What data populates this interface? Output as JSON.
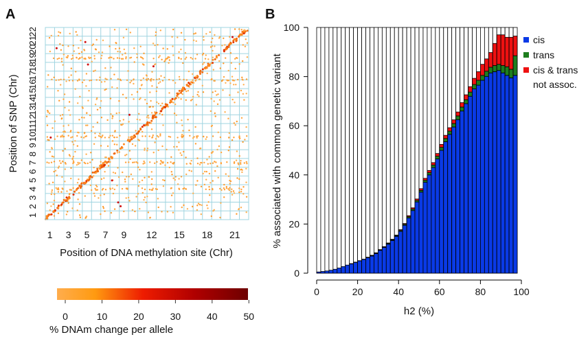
{
  "panels": {
    "a": {
      "letter": "A",
      "xlabel": "Position of DNA methylation site (Chr)",
      "ylabel": "Position of SNP (Chr)",
      "x_ticks": [
        "1",
        "3",
        "5",
        "7",
        "9",
        "12",
        "15",
        "18",
        "21"
      ],
      "y_ticks": [
        "1",
        "2",
        "3",
        "4",
        "5",
        "6",
        "7",
        "8",
        "9",
        "10",
        "11",
        "12",
        "13",
        "14",
        "15",
        "16",
        "17",
        "18",
        "19",
        "20",
        "21",
        "22"
      ],
      "grid_color": "#9fd4e0",
      "colorbar": {
        "label": "% DNAm change per allele",
        "ticks": [
          "0",
          "10",
          "20",
          "30",
          "40",
          "50"
        ],
        "range": [
          0,
          52
        ],
        "colors": [
          "#ffad4d",
          "#ff9a10",
          "#ee1c00",
          "#b00000",
          "#6e0000"
        ]
      }
    },
    "b": {
      "letter": "B",
      "xlabel": "h2 (%)",
      "ylabel": "% associated with common genetic variant",
      "x_ticks": [
        "0",
        "20",
        "40",
        "60",
        "80",
        "100"
      ],
      "y_ticks": [
        "0",
        "20",
        "40",
        "60",
        "80",
        "100"
      ],
      "legend": [
        {
          "label": "cis",
          "color": "#0a3ae6"
        },
        {
          "label": "trans",
          "color": "#1e7e1e"
        },
        {
          "label": "cis & trans",
          "color": "#ee1111"
        },
        {
          "label": "not assoc.",
          "color": "#ffffff"
        }
      ]
    }
  },
  "chart_data": [
    {
      "type": "scatter",
      "title": "A",
      "xlabel": "Position of DNA methylation site (Chr)",
      "ylabel": "Position of SNP (Chr)",
      "x_tick_labels": [
        "1",
        "3",
        "5",
        "7",
        "9",
        "12",
        "15",
        "18",
        "21"
      ],
      "y_tick_labels": [
        "1",
        "2",
        "3",
        "4",
        "5",
        "6",
        "7",
        "8",
        "9",
        "10",
        "11",
        "12",
        "13",
        "14",
        "15",
        "16",
        "17",
        "18",
        "19",
        "20",
        "21",
        "22"
      ],
      "xlim": [
        0,
        22
      ],
      "ylim": [
        0,
        22
      ],
      "grid": true,
      "colorbar_label": "% DNAm change per allele",
      "colorbar_range": [
        0,
        52
      ]
    },
    {
      "type": "bar",
      "title": "B",
      "xlabel": "h2 (%)",
      "ylabel": "% associated with common genetic variant",
      "xlim": [
        0,
        100
      ],
      "ylim": [
        0,
        100
      ],
      "bin_width": 2,
      "x": [
        1,
        3,
        5,
        7,
        9,
        11,
        13,
        15,
        17,
        19,
        21,
        23,
        25,
        27,
        29,
        31,
        33,
        35,
        37,
        39,
        41,
        43,
        45,
        47,
        49,
        51,
        53,
        55,
        57,
        59,
        61,
        63,
        65,
        67,
        69,
        71,
        73,
        75,
        77,
        79,
        81,
        83,
        85,
        87,
        89,
        91,
        93,
        95,
        97
      ],
      "series": [
        {
          "name": "cis",
          "values": [
            0.5,
            0.7,
            0.9,
            1.2,
            1.6,
            2.1,
            2.7,
            3.3,
            3.8,
            4.4,
            5.0,
            5.6,
            6.3,
            7.0,
            8.0,
            9.3,
            10.5,
            11.8,
            13.3,
            15.0,
            17.0,
            19.5,
            22.5,
            25.5,
            29.0,
            33.0,
            37.0,
            40.0,
            43.0,
            46.5,
            50.0,
            53.5,
            56.5,
            59.5,
            62.5,
            66.0,
            69.0,
            72.0,
            75.0,
            76.5,
            78.5,
            80.0,
            81.5,
            82.0,
            82.5,
            81.5,
            80.5,
            79.5,
            80.5
          ]
        },
        {
          "name": "trans",
          "values": [
            0.0,
            0.0,
            0.0,
            0.0,
            0.0,
            0.0,
            0.0,
            0.0,
            0.1,
            0.1,
            0.1,
            0.1,
            0.1,
            0.2,
            0.2,
            0.2,
            0.2,
            0.3,
            0.3,
            0.3,
            0.4,
            0.4,
            0.5,
            0.6,
            0.6,
            0.7,
            0.8,
            0.9,
            1.0,
            1.1,
            1.2,
            1.3,
            1.3,
            1.4,
            1.5,
            1.6,
            1.6,
            1.7,
            1.8,
            2.0,
            2.0,
            2.2,
            2.3,
            2.5,
            2.5,
            3.0,
            3.5,
            3.5,
            8.0
          ]
        },
        {
          "name": "cis & trans",
          "values": [
            0.0,
            0.0,
            0.0,
            0.0,
            0.0,
            0.0,
            0.0,
            0.0,
            0.0,
            0.0,
            0.0,
            0.0,
            0.1,
            0.1,
            0.1,
            0.1,
            0.1,
            0.2,
            0.2,
            0.2,
            0.3,
            0.3,
            0.4,
            0.5,
            0.6,
            0.7,
            0.8,
            0.9,
            1.0,
            1.1,
            1.2,
            1.3,
            1.4,
            1.5,
            1.6,
            1.8,
            2.0,
            2.2,
            2.5,
            3.5,
            4.5,
            5.0,
            6.0,
            9.0,
            12.0,
            12.5,
            12.0,
            13.0,
            8.0
          ]
        }
      ]
    }
  ]
}
